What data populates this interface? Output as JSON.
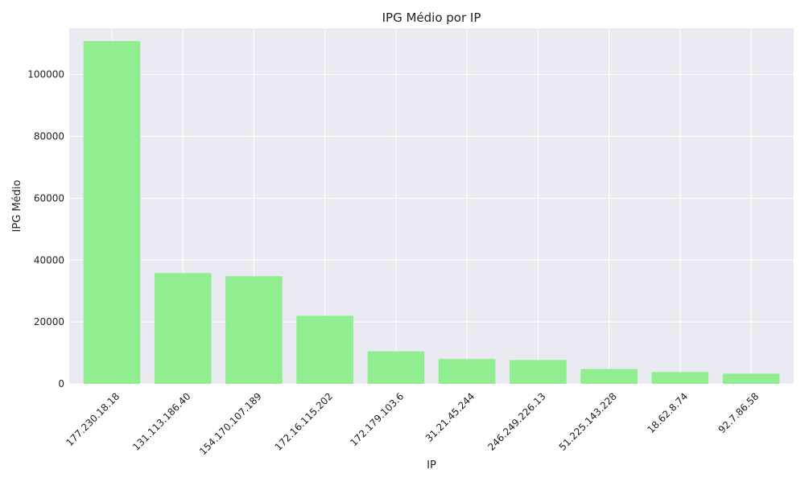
{
  "chart_data": {
    "type": "bar",
    "title": "IPG Médio por IP",
    "xlabel": "IP",
    "ylabel": "IPG Médio",
    "categories": [
      "177.230.18.18",
      "131.113.186.40",
      "154.170.107.189",
      "172.16.115.202",
      "172.179.103.6",
      "31.21.45.244",
      "246.249.226.13",
      "51.225.143.228",
      "18.62.8.74",
      "92.7.86.58"
    ],
    "values": [
      110800,
      35800,
      34800,
      22000,
      10500,
      8000,
      7700,
      4800,
      3800,
      3300
    ],
    "ylim": [
      0,
      115000
    ],
    "yticks": [
      0,
      20000,
      40000,
      60000,
      80000,
      100000
    ],
    "grid": true,
    "legend": "none",
    "colors": {
      "bar": "#90ee90",
      "plot_background": "#eaeaf2",
      "grid": "#ffffff"
    }
  }
}
